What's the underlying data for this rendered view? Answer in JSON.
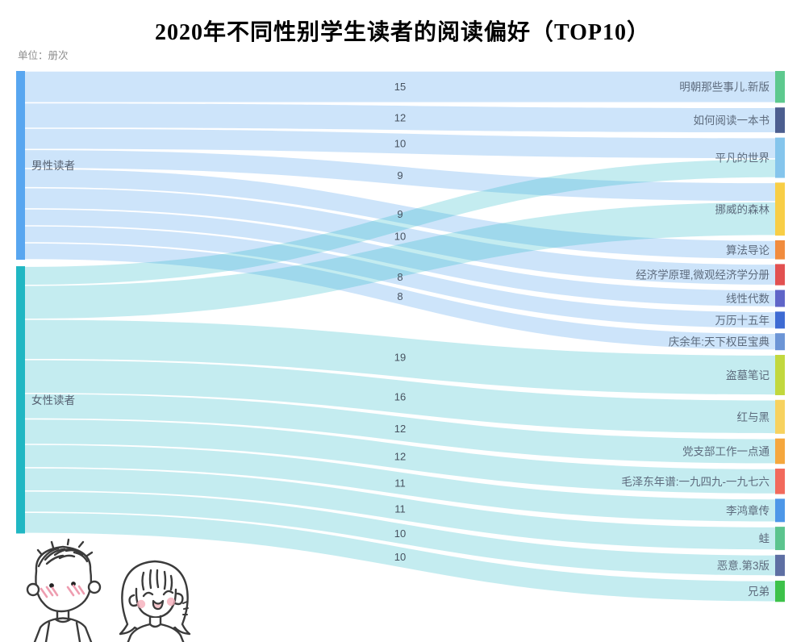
{
  "title": "2020年不同性别学生读者的阅读偏好（TOP10）",
  "unit_label": "单位：册次",
  "chart_data": {
    "type": "sankey",
    "orientation": "horizontal",
    "unit": "册次",
    "source_nodes": [
      {
        "name": "男性读者",
        "color": "#58A6F0"
      },
      {
        "name": "女性读者",
        "color": "#20B7C3"
      }
    ],
    "target_nodes": [
      {
        "name": "明朝那些事儿.新版",
        "color": "#5DC98E"
      },
      {
        "name": "如何阅读一本书",
        "color": "#4C5E8F"
      },
      {
        "name": "平凡的世界",
        "color": "#85C5EC"
      },
      {
        "name": "挪威的森林",
        "color": "#F8CE46"
      },
      {
        "name": "算法导论",
        "color": "#F18C3E"
      },
      {
        "name": "经济学原理,微观经济学分册",
        "color": "#E25151"
      },
      {
        "name": "线性代数",
        "color": "#5F65C8"
      },
      {
        "name": "万历十五年",
        "color": "#3E6BD3"
      },
      {
        "name": "庆余年:天下权臣宝典",
        "color": "#6C95D6"
      },
      {
        "name": "盗墓笔记",
        "color": "#C2D83E"
      },
      {
        "name": "红与黑",
        "color": "#F7D25F"
      },
      {
        "name": "党支部工作一点通",
        "color": "#F5A73D"
      },
      {
        "name": "毛泽东年谱:一九四九-一九七六",
        "color": "#F26A5C"
      },
      {
        "name": "李鸿章传",
        "color": "#4D97E8"
      },
      {
        "name": "蛙",
        "color": "#5BC48E"
      },
      {
        "name": "恶意.第3版",
        "color": "#5E6FA3"
      },
      {
        "name": "兄弟",
        "color": "#3DC24A"
      }
    ],
    "links": [
      {
        "source": "男性读者",
        "target": "明朝那些事儿.新版",
        "value": 15
      },
      {
        "source": "男性读者",
        "target": "如何阅读一本书",
        "value": 12
      },
      {
        "source": "男性读者",
        "target": "平凡的世界",
        "value": 10
      },
      {
        "source": "男性读者",
        "target": "挪威的森林",
        "value": 9
      },
      {
        "source": "男性读者",
        "target": "算法导论",
        "value": 9
      },
      {
        "source": "男性读者",
        "target": "经济学原理,微观经济学分册",
        "value": 10
      },
      {
        "source": "男性读者",
        "target": "线性代数",
        "value": 8,
        "label_hidden": true
      },
      {
        "source": "男性读者",
        "target": "万历十五年",
        "value": 8
      },
      {
        "source": "男性读者",
        "target": "庆余年:天下权臣宝典",
        "value": 8
      },
      {
        "source": "女性读者",
        "target": "平凡的世界",
        "value": 9,
        "label_hidden": true
      },
      {
        "source": "女性读者",
        "target": "挪威的森林",
        "value": 16,
        "label_hidden": true
      },
      {
        "source": "女性读者",
        "target": "盗墓笔记",
        "value": 19
      },
      {
        "source": "女性读者",
        "target": "红与黑",
        "value": 16
      },
      {
        "source": "女性读者",
        "target": "党支部工作一点通",
        "value": 12
      },
      {
        "source": "女性读者",
        "target": "毛泽东年谱:一九四九-一九七六",
        "value": 12
      },
      {
        "source": "女性读者",
        "target": "李鸿章传",
        "value": 11
      },
      {
        "source": "女性读者",
        "target": "蛙",
        "value": 11
      },
      {
        "source": "女性读者",
        "target": "恶意.第3版",
        "value": 10
      },
      {
        "source": "女性读者",
        "target": "兄弟",
        "value": 10
      }
    ],
    "ribbon_colors": {
      "男性读者": "rgba(88,166,240,0.30)",
      "女性读者": "rgba(38,184,198,0.27)"
    },
    "style": {
      "node_label_color": "#5d6b7d",
      "value_label_color": "#47525f",
      "unit_color": "#8c8c8c",
      "blush_color": "#ee9db0",
      "line_color": "#3b3b3b"
    }
  }
}
